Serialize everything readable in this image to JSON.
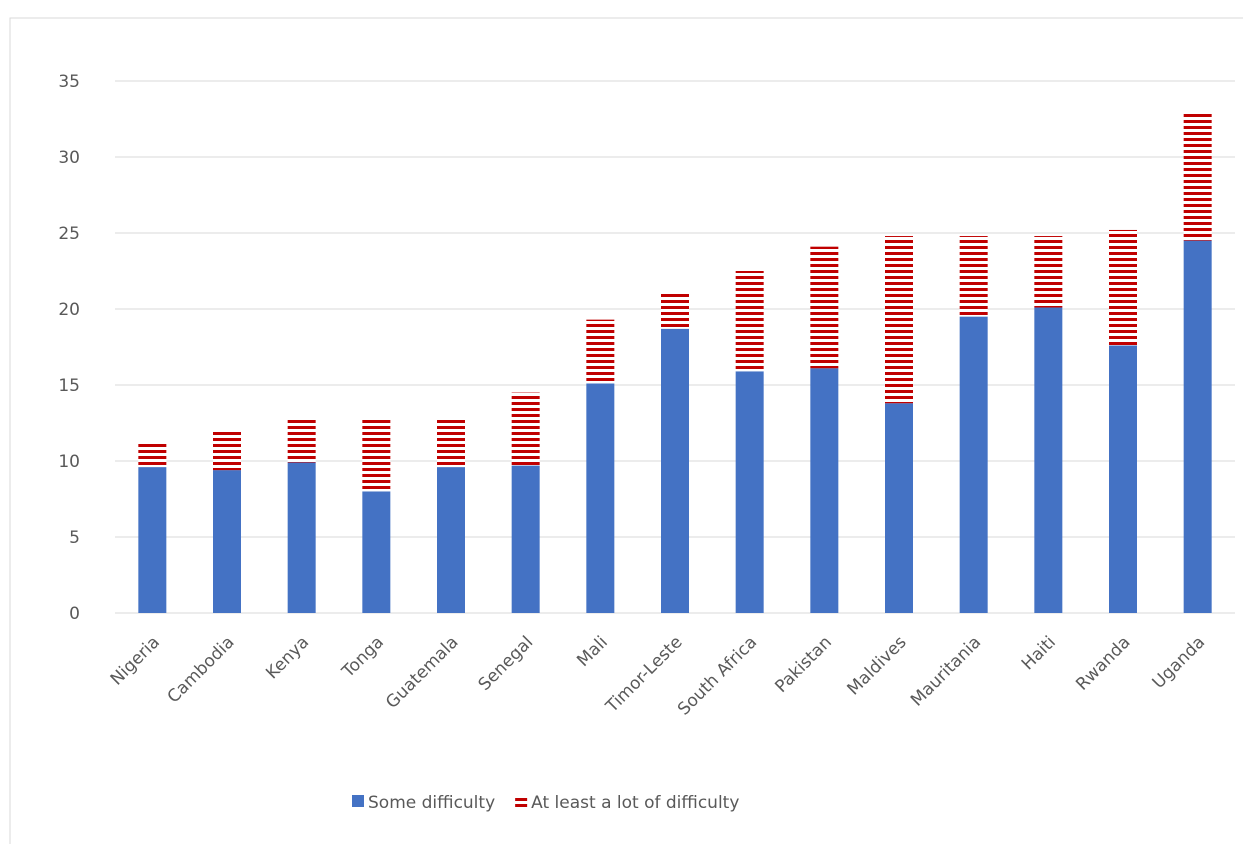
{
  "chart_data": {
    "type": "stacked-bar",
    "categories": [
      "Nigeria",
      "Cambodia",
      "Kenya",
      "Tonga",
      "Guatemala",
      "Senegal",
      "Mali",
      "Timor-Leste",
      "South Africa",
      "Pakistan",
      "Maldives",
      "Mauritania",
      "Haiti",
      "Rwanda",
      "Uganda"
    ],
    "series": [
      {
        "name": "Some difficulty",
        "color": "#4472c4",
        "values": [
          9.6,
          9.4,
          9.9,
          8.0,
          9.6,
          9.7,
          15.1,
          18.7,
          15.9,
          16.1,
          13.8,
          19.5,
          20.1,
          17.6,
          24.5
        ]
      },
      {
        "name": "At least a lot of difficulty",
        "color": "#c00000",
        "values": [
          1.6,
          2.6,
          2.8,
          4.7,
          3.2,
          4.8,
          4.2,
          2.3,
          6.6,
          8.0,
          11.0,
          5.3,
          4.7,
          7.6,
          8.4
        ]
      }
    ],
    "ylim": [
      0,
      35
    ],
    "yticks": [
      0,
      5,
      10,
      15,
      20,
      25,
      30,
      35
    ],
    "grid": true,
    "legend": "bottom"
  }
}
